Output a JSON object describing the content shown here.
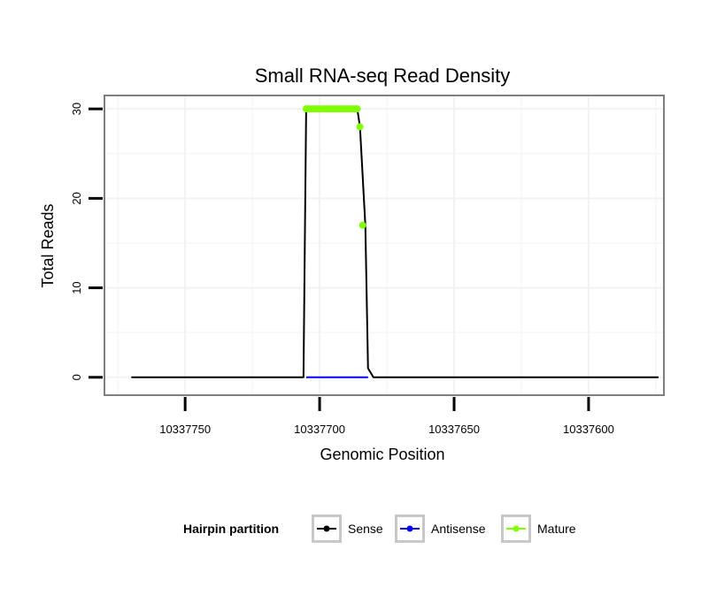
{
  "chart_data": {
    "type": "line",
    "title": "Small RNA-seq Read Density",
    "xlabel": "Genomic Position",
    "ylabel": "Total Reads",
    "x_reversed": true,
    "xlim": [
      10337780,
      10337572
    ],
    "ylim": [
      -2,
      31.5
    ],
    "x_ticks": [
      10337750,
      10337700,
      10337650,
      10337600
    ],
    "x_tick_labels": [
      "10337750",
      "10337700",
      "10337650",
      "10337600"
    ],
    "y_ticks": [
      0,
      10,
      20,
      30
    ],
    "y_tick_labels": [
      "0",
      "10",
      "20",
      "30"
    ],
    "grid": true,
    "legend": {
      "title": "Hairpin partition",
      "position": "bottom",
      "entries": [
        {
          "label": "Sense",
          "color": "#000000"
        },
        {
          "label": "Antisense",
          "color": "#0000ff"
        },
        {
          "label": "Mature",
          "color": "#7fff00"
        }
      ]
    },
    "series": [
      {
        "name": "Sense",
        "color": "#000000",
        "x": [
          10337770,
          10337706,
          10337705,
          10337686,
          10337685,
          10337683,
          10337682,
          10337680,
          10337574
        ],
        "y": [
          0,
          0,
          30,
          30,
          28,
          17,
          1,
          0,
          0
        ]
      },
      {
        "name": "Antisense",
        "color": "#0000ff",
        "x": [
          10337705,
          10337682
        ],
        "y": [
          0,
          0
        ]
      },
      {
        "name": "Mature",
        "color": "#7fff00",
        "markers": true,
        "x": [
          10337705,
          10337704,
          10337703,
          10337702,
          10337701,
          10337700,
          10337699,
          10337698,
          10337697,
          10337696,
          10337695,
          10337694,
          10337693,
          10337692,
          10337691,
          10337690,
          10337689,
          10337688,
          10337687,
          10337686,
          10337685,
          10337684
        ],
        "y": [
          30,
          30,
          30,
          30,
          30,
          30,
          30,
          30,
          30,
          30,
          30,
          30,
          30,
          30,
          30,
          30,
          30,
          30,
          30,
          30,
          28,
          17
        ]
      }
    ]
  }
}
